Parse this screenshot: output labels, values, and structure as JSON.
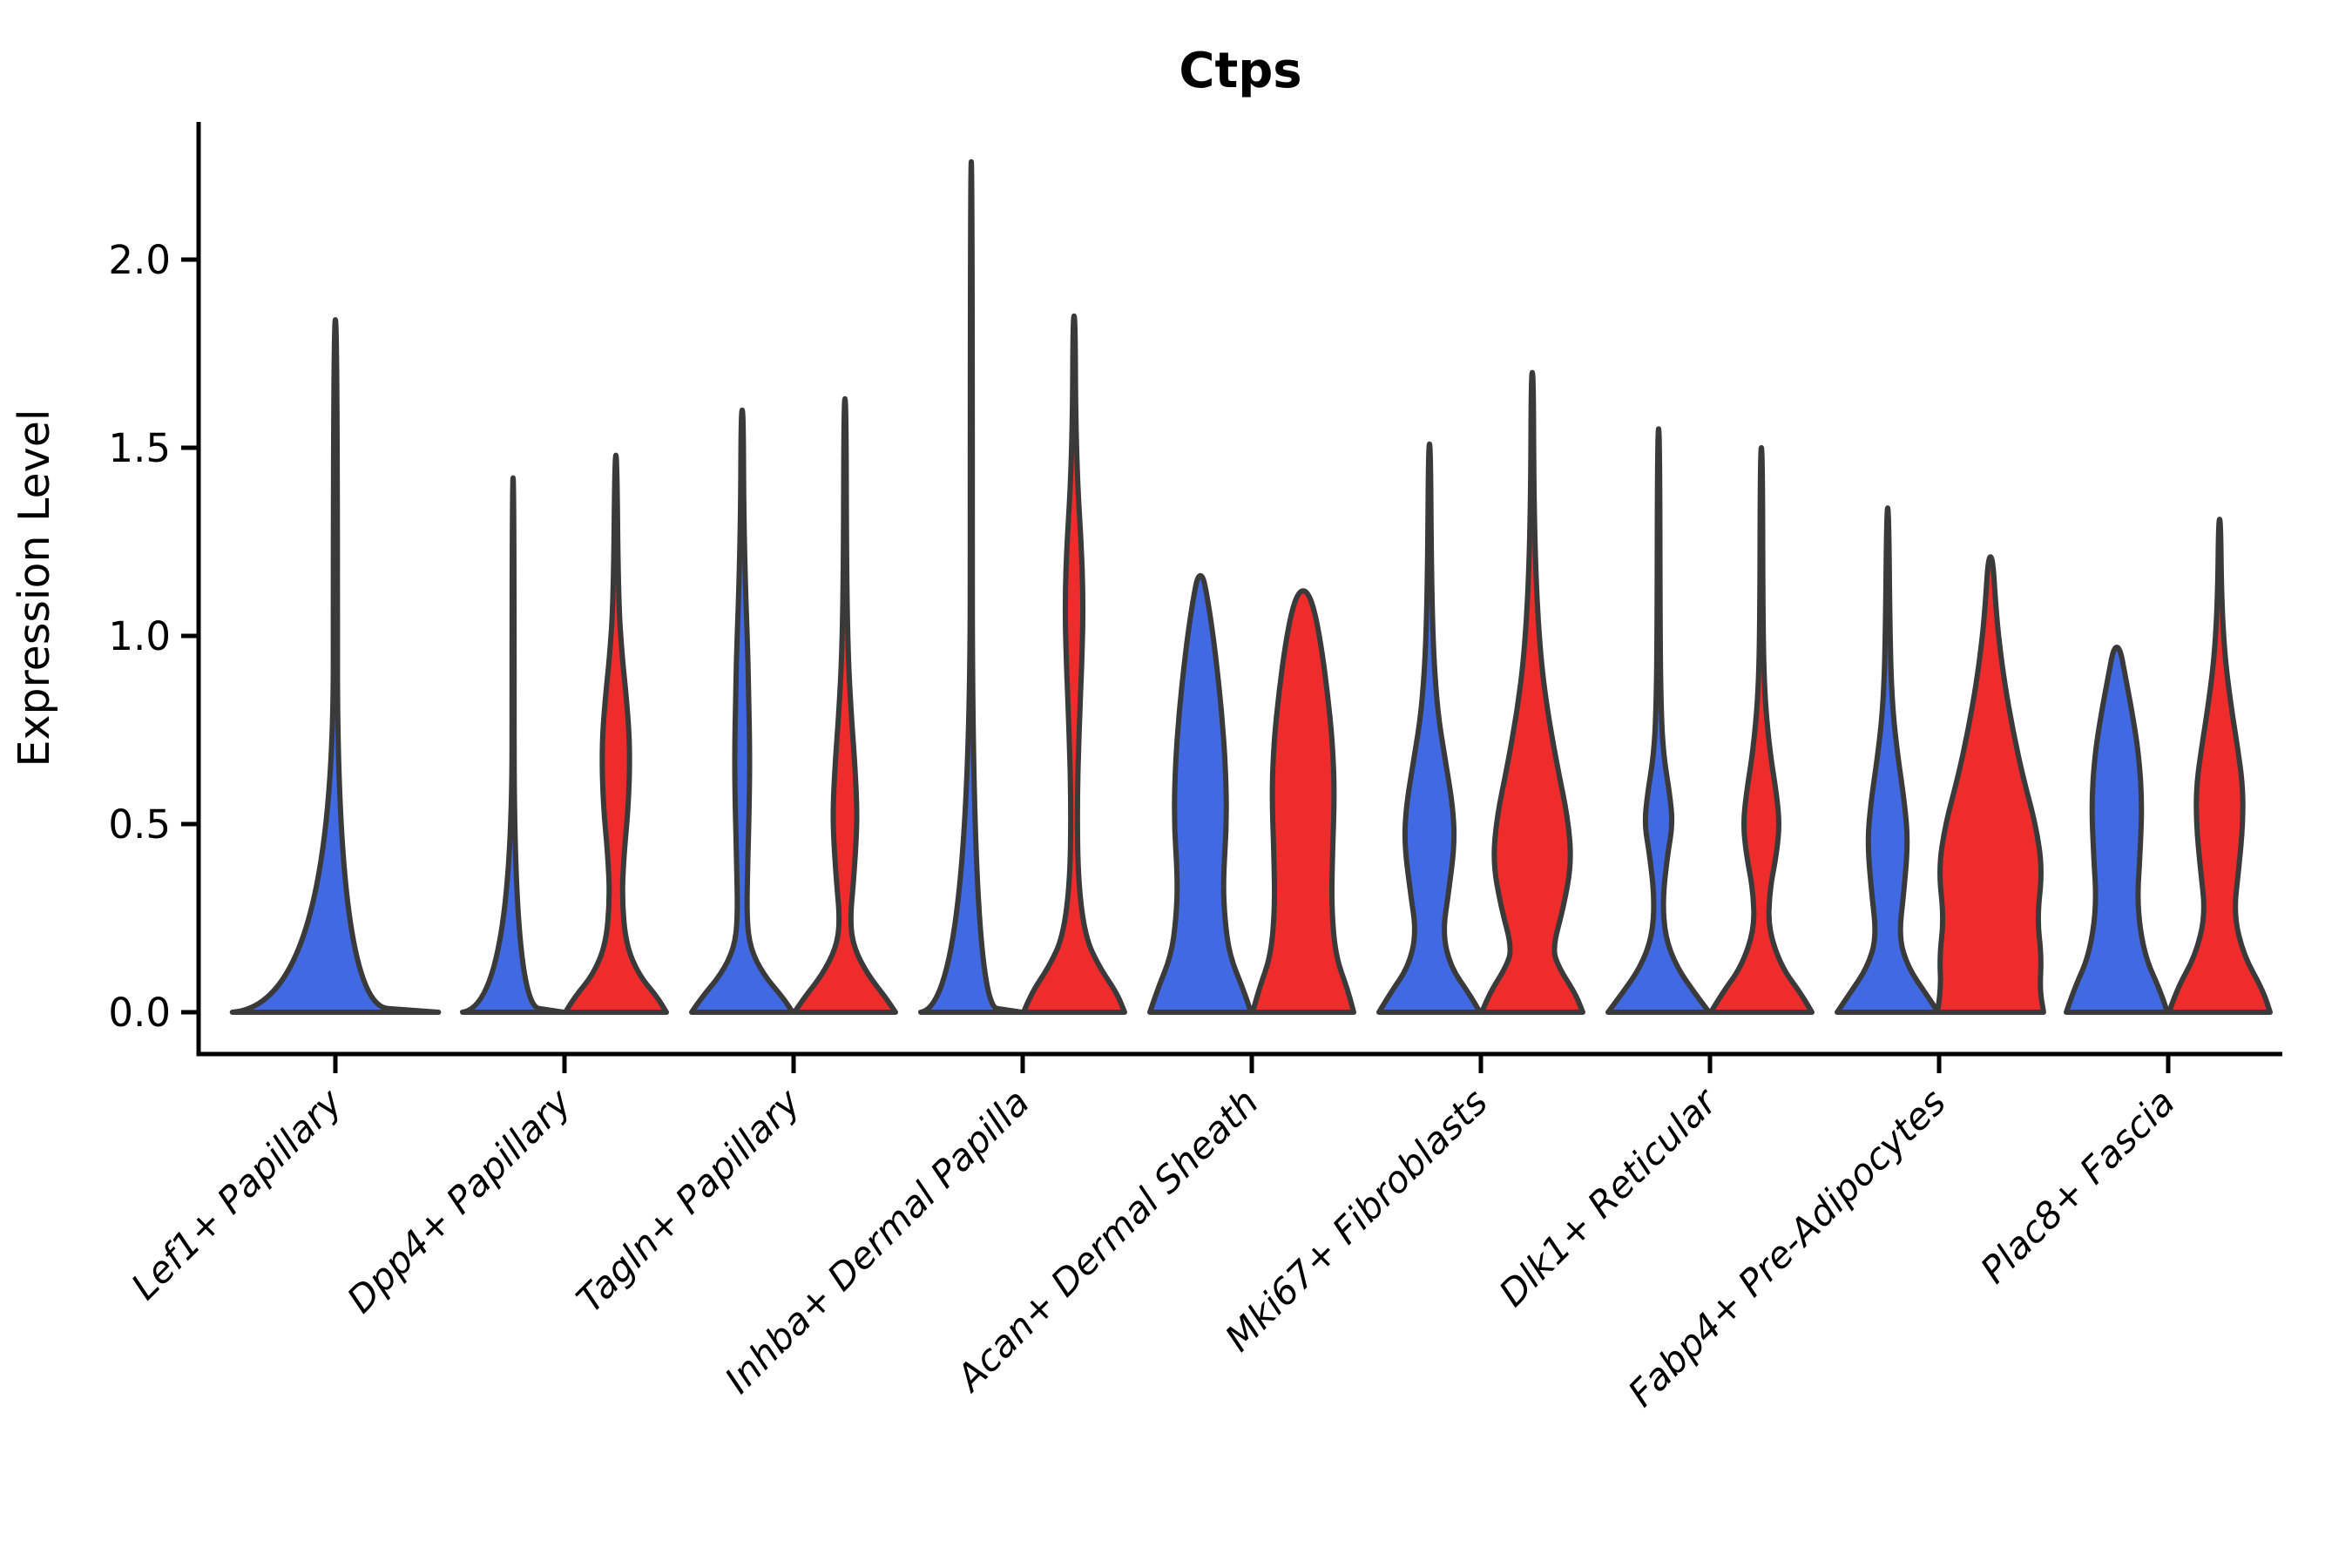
{
  "page": {
    "title": "Ctps"
  },
  "chart_data": {
    "type": "violin",
    "title": "Ctps",
    "ylabel": "Expression Level",
    "xlabel": "",
    "yticks": [
      0.0,
      0.5,
      1.0,
      1.5,
      2.0
    ],
    "ylim": [
      -0.11,
      2.37
    ],
    "grid": false,
    "legend": "none",
    "series_colors": {
      "blue": "#4169E1",
      "red": "#EE2C2C"
    },
    "outline_color": "#3A3A3A",
    "axis_color": "#000000",
    "categories": [
      "Lef1+ Papillary",
      "Dpp4+ Papillary",
      "Tagln+ Papillary",
      "Inhba+ Dermal Papilla",
      "Acan+ Dermal Sheath",
      "Mki67+ Fibroblasts",
      "Dlk1+ Reticular",
      "Fabp4+ Pre-Adipocytes",
      "Plac8+ Fascia"
    ],
    "groups": [
      {
        "label": "Lef1+ Papillary",
        "violins": [
          {
            "split": "single",
            "color": "blue",
            "max": 1.84,
            "width_scale": 2.04,
            "profile": [
              [
                0,
                1.0
              ],
              [
                0.02,
                0.02
              ],
              [
                1.84,
                0.02
              ]
            ]
          }
        ]
      },
      {
        "label": "Dpp4+ Papillary",
        "violins": [
          {
            "split": "blue",
            "color": "blue",
            "max": 1.42,
            "width_scale": 1,
            "profile": [
              [
                0,
                1.0
              ],
              [
                0.02,
                0.02
              ],
              [
                1.42,
                0.02
              ]
            ]
          },
          {
            "split": "red",
            "color": "red",
            "max": 1.48,
            "width_scale": 1,
            "profile": [
              [
                0,
                1.0
              ],
              [
                0.04,
                0.82
              ],
              [
                0.1,
                0.45
              ],
              [
                0.18,
                0.2
              ],
              [
                0.3,
                0.12
              ],
              [
                0.42,
                0.16
              ],
              [
                0.55,
                0.25
              ],
              [
                0.7,
                0.28
              ],
              [
                0.82,
                0.22
              ],
              [
                0.95,
                0.12
              ],
              [
                1.1,
                0.05
              ],
              [
                1.48,
                0.02
              ]
            ]
          }
        ]
      },
      {
        "label": "Tagln+ Papillary",
        "violins": [
          {
            "split": "blue",
            "color": "blue",
            "max": 1.6,
            "width_scale": 1,
            "profile": [
              [
                0,
                1.0
              ],
              [
                0.04,
                0.8
              ],
              [
                0.1,
                0.42
              ],
              [
                0.17,
                0.16
              ],
              [
                0.25,
                0.09
              ],
              [
                0.4,
                0.11
              ],
              [
                0.55,
                0.14
              ],
              [
                0.68,
                0.15
              ],
              [
                0.85,
                0.13
              ],
              [
                1.0,
                0.1
              ],
              [
                1.15,
                0.06
              ],
              [
                1.35,
                0.03
              ],
              [
                1.6,
                0.02
              ]
            ]
          },
          {
            "split": "red",
            "color": "red",
            "max": 1.63,
            "width_scale": 1,
            "profile": [
              [
                0,
                1.0
              ],
              [
                0.04,
                0.8
              ],
              [
                0.1,
                0.45
              ],
              [
                0.17,
                0.18
              ],
              [
                0.24,
                0.1
              ],
              [
                0.35,
                0.17
              ],
              [
                0.45,
                0.22
              ],
              [
                0.53,
                0.24
              ],
              [
                0.65,
                0.2
              ],
              [
                0.78,
                0.13
              ],
              [
                0.95,
                0.06
              ],
              [
                1.2,
                0.03
              ],
              [
                1.63,
                0.02
              ]
            ]
          }
        ]
      },
      {
        "label": "Inhba+ Dermal Papilla",
        "violins": [
          {
            "split": "blue",
            "color": "blue",
            "max": 2.26,
            "width_scale": 1,
            "profile": [
              [
                0,
                1.0
              ],
              [
                0.02,
                0.02
              ],
              [
                2.26,
                0.02
              ]
            ]
          },
          {
            "split": "red",
            "color": "red",
            "max": 1.85,
            "width_scale": 1,
            "profile": [
              [
                0,
                1.0
              ],
              [
                0.05,
                0.85
              ],
              [
                0.12,
                0.5
              ],
              [
                0.2,
                0.22
              ],
              [
                0.35,
                0.08
              ],
              [
                0.55,
                0.06
              ],
              [
                0.75,
                0.1
              ],
              [
                0.95,
                0.16
              ],
              [
                1.1,
                0.18
              ],
              [
                1.25,
                0.14
              ],
              [
                1.4,
                0.07
              ],
              [
                1.6,
                0.03
              ],
              [
                1.85,
                0.02
              ]
            ]
          }
        ]
      },
      {
        "label": "Acan+ Dermal Sheath",
        "violins": [
          {
            "split": "blue",
            "color": "blue",
            "max": 1.16,
            "width_scale": 1,
            "profile": [
              [
                0,
                1.0
              ],
              [
                0.06,
                0.85
              ],
              [
                0.15,
                0.58
              ],
              [
                0.25,
                0.48
              ],
              [
                0.35,
                0.45
              ],
              [
                0.5,
                0.52
              ],
              [
                0.65,
                0.5
              ],
              [
                0.8,
                0.42
              ],
              [
                0.95,
                0.3
              ],
              [
                1.05,
                0.2
              ],
              [
                1.13,
                0.1
              ],
              [
                1.16,
                0.04
              ]
            ]
          },
          {
            "split": "red",
            "color": "red",
            "max": 1.12,
            "width_scale": 1,
            "profile": [
              [
                0,
                1.0
              ],
              [
                0.06,
                0.88
              ],
              [
                0.15,
                0.64
              ],
              [
                0.28,
                0.56
              ],
              [
                0.42,
                0.58
              ],
              [
                0.58,
                0.62
              ],
              [
                0.72,
                0.58
              ],
              [
                0.85,
                0.48
              ],
              [
                0.98,
                0.35
              ],
              [
                1.07,
                0.22
              ],
              [
                1.12,
                0.08
              ]
            ]
          }
        ]
      },
      {
        "label": "Mki67+ Fibroblasts",
        "violins": [
          {
            "split": "blue",
            "color": "blue",
            "max": 1.51,
            "width_scale": 1,
            "profile": [
              [
                0,
                1.0
              ],
              [
                0.05,
                0.78
              ],
              [
                0.12,
                0.42
              ],
              [
                0.21,
                0.26
              ],
              [
                0.32,
                0.38
              ],
              [
                0.45,
                0.5
              ],
              [
                0.55,
                0.46
              ],
              [
                0.68,
                0.3
              ],
              [
                0.8,
                0.16
              ],
              [
                0.95,
                0.08
              ],
              [
                1.15,
                0.04
              ],
              [
                1.51,
                0.02
              ]
            ]
          },
          {
            "split": "red",
            "color": "red",
            "max": 1.7,
            "width_scale": 1,
            "profile": [
              [
                0,
                1.0
              ],
              [
                0.05,
                0.85
              ],
              [
                0.12,
                0.52
              ],
              [
                0.17,
                0.4
              ],
              [
                0.28,
                0.62
              ],
              [
                0.4,
                0.78
              ],
              [
                0.52,
                0.7
              ],
              [
                0.65,
                0.5
              ],
              [
                0.8,
                0.3
              ],
              [
                0.95,
                0.16
              ],
              [
                1.15,
                0.07
              ],
              [
                1.4,
                0.03
              ],
              [
                1.7,
                0.02
              ]
            ]
          }
        ]
      },
      {
        "label": "Dlk1+ Reticular",
        "violins": [
          {
            "split": "blue",
            "color": "blue",
            "max": 1.55,
            "width_scale": 1,
            "profile": [
              [
                0,
                1.0
              ],
              [
                0.05,
                0.72
              ],
              [
                0.12,
                0.36
              ],
              [
                0.2,
                0.13
              ],
              [
                0.3,
                0.08
              ],
              [
                0.42,
                0.18
              ],
              [
                0.5,
                0.28
              ],
              [
                0.58,
                0.22
              ],
              [
                0.68,
                0.1
              ],
              [
                0.8,
                0.05
              ],
              [
                1.0,
                0.03
              ],
              [
                1.55,
                0.02
              ]
            ]
          },
          {
            "split": "red",
            "color": "red",
            "max": 1.5,
            "width_scale": 1,
            "profile": [
              [
                0,
                1.0
              ],
              [
                0.05,
                0.78
              ],
              [
                0.12,
                0.4
              ],
              [
                0.22,
                0.14
              ],
              [
                0.32,
                0.16
              ],
              [
                0.42,
                0.3
              ],
              [
                0.5,
                0.36
              ],
              [
                0.58,
                0.3
              ],
              [
                0.7,
                0.16
              ],
              [
                0.85,
                0.06
              ],
              [
                1.05,
                0.03
              ],
              [
                1.5,
                0.02
              ]
            ]
          }
        ]
      },
      {
        "label": "Fabp4+ Pre-Adipocytes",
        "violins": [
          {
            "split": "blue",
            "color": "blue",
            "max": 1.34,
            "width_scale": 1,
            "profile": [
              [
                0,
                1.0
              ],
              [
                0.05,
                0.75
              ],
              [
                0.12,
                0.4
              ],
              [
                0.2,
                0.22
              ],
              [
                0.32,
                0.32
              ],
              [
                0.45,
                0.4
              ],
              [
                0.55,
                0.34
              ],
              [
                0.68,
                0.2
              ],
              [
                0.8,
                0.1
              ],
              [
                0.95,
                0.05
              ],
              [
                1.34,
                0.02
              ]
            ]
          },
          {
            "split": "red",
            "color": "red",
            "max": 1.21,
            "width_scale": 1.05,
            "profile": [
              [
                0,
                1.0
              ],
              [
                0.06,
                0.93
              ],
              [
                0.15,
                0.96
              ],
              [
                0.25,
                0.88
              ],
              [
                0.38,
                0.98
              ],
              [
                0.5,
                0.85
              ],
              [
                0.62,
                0.62
              ],
              [
                0.75,
                0.42
              ],
              [
                0.88,
                0.26
              ],
              [
                1.0,
                0.15
              ],
              [
                1.1,
                0.09
              ],
              [
                1.21,
                0.04
              ]
            ]
          }
        ]
      },
      {
        "label": "Plac8+ Fascia",
        "violins": [
          {
            "split": "blue",
            "color": "blue",
            "max": 0.97,
            "width_scale": 1,
            "profile": [
              [
                0,
                1.0
              ],
              [
                0.06,
                0.85
              ],
              [
                0.15,
                0.55
              ],
              [
                0.28,
                0.4
              ],
              [
                0.42,
                0.46
              ],
              [
                0.55,
                0.5
              ],
              [
                0.68,
                0.44
              ],
              [
                0.8,
                0.3
              ],
              [
                0.9,
                0.16
              ],
              [
                0.97,
                0.06
              ]
            ]
          },
          {
            "split": "red",
            "color": "red",
            "max": 1.31,
            "width_scale": 1,
            "profile": [
              [
                0,
                1.0
              ],
              [
                0.06,
                0.85
              ],
              [
                0.15,
                0.48
              ],
              [
                0.26,
                0.28
              ],
              [
                0.38,
                0.38
              ],
              [
                0.5,
                0.46
              ],
              [
                0.6,
                0.46
              ],
              [
                0.7,
                0.36
              ],
              [
                0.82,
                0.22
              ],
              [
                0.95,
                0.1
              ],
              [
                1.1,
                0.04
              ],
              [
                1.31,
                0.02
              ]
            ]
          }
        ]
      }
    ]
  }
}
